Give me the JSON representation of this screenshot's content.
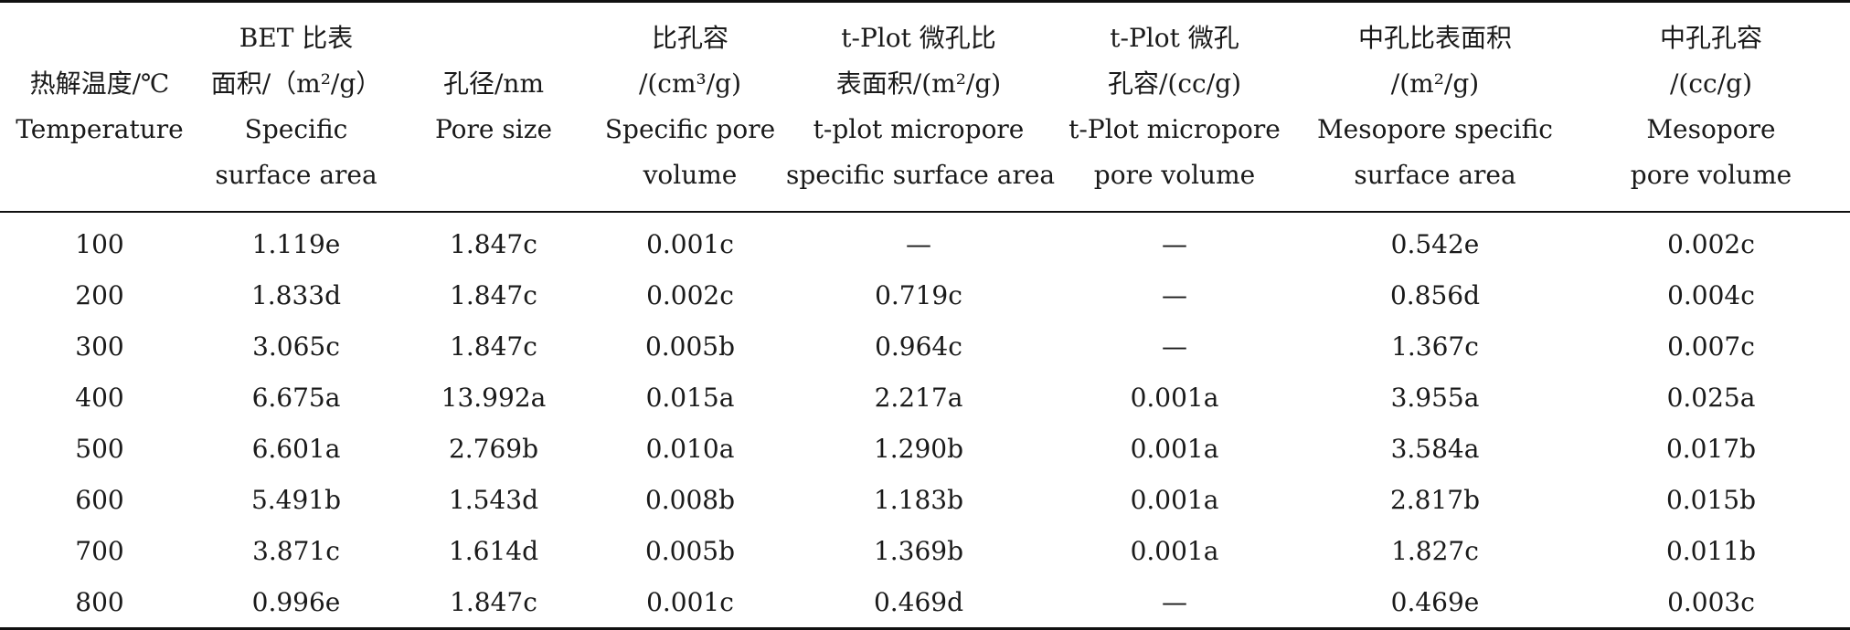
{
  "table": {
    "headers": [
      [
        "热解温度/℃",
        "Temperature"
      ],
      [
        "BET 比表",
        "面积/（m²/g）",
        "Specific",
        "surface area"
      ],
      [
        "孔径/nm",
        "Pore size"
      ],
      [
        "比孔容",
        "/(cm³/g)",
        "Specific pore",
        "volume"
      ],
      [
        "t-Plot 微孔比",
        "表面积/(m²/g)",
        "t-plot micropore",
        "specific surface area"
      ],
      [
        "t-Plot 微孔",
        "孔容/(cc/g)",
        "t-Plot micropore",
        "pore volume"
      ],
      [
        "中孔比表面积",
        "/(m²/g)",
        "Mesopore specific",
        "surface area"
      ],
      [
        "中孔孔容",
        "/(cc/g)",
        "Mesopore",
        "pore volume"
      ]
    ],
    "rows": [
      [
        "100",
        "1.119e",
        "1.847c",
        "0.001c",
        "—",
        "—",
        "0.542e",
        "0.002c"
      ],
      [
        "200",
        "1.833d",
        "1.847c",
        "0.002c",
        "0.719c",
        "—",
        "0.856d",
        "0.004c"
      ],
      [
        "300",
        "3.065c",
        "1.847c",
        "0.005b",
        "0.964c",
        "—",
        "1.367c",
        "0.007c"
      ],
      [
        "400",
        "6.675a",
        "13.992a",
        "0.015a",
        "2.217a",
        "0.001a",
        "3.955a",
        "0.025a"
      ],
      [
        "500",
        "6.601a",
        "2.769b",
        "0.010a",
        "1.290b",
        "0.001a",
        "3.584a",
        "0.017b"
      ],
      [
        "600",
        "5.491b",
        "1.543d",
        "0.008b",
        "1.183b",
        "0.001a",
        "2.817b",
        "0.015b"
      ],
      [
        "700",
        "3.871c",
        "1.614d",
        "0.005b",
        "1.369b",
        "0.001a",
        "1.827c",
        "0.011b"
      ],
      [
        "800",
        "0.996e",
        "1.847c",
        "0.001c",
        "0.469d",
        "—",
        "0.469e",
        "0.003c"
      ]
    ]
  }
}
